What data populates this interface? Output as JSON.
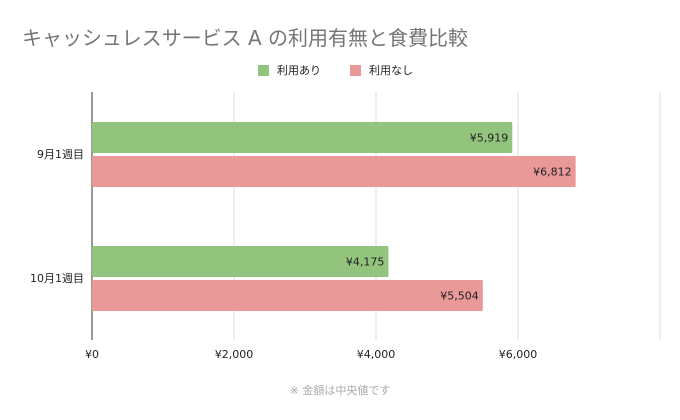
{
  "chart_data": {
    "type": "bar",
    "orientation": "horizontal",
    "title": "キャッシュレスサービス A の利用有無と食費比較",
    "categories": [
      "9月1週目",
      "10月1週目"
    ],
    "series": [
      {
        "name": "利用あり",
        "color": "#93c47d",
        "values": [
          5919,
          4175
        ],
        "labels": [
          "¥5,919",
          "¥4,175"
        ]
      },
      {
        "name": "利用なし",
        "color": "#ea9999",
        "values": [
          6812,
          5504
        ],
        "labels": [
          "¥6,812",
          "¥5,504"
        ]
      }
    ],
    "xlim": [
      0,
      8000
    ],
    "xticks": [
      0,
      2000,
      4000,
      6000,
      8000
    ],
    "xtick_labels": [
      "¥0",
      "¥2,000",
      "¥4,000",
      "¥6,000",
      ""
    ],
    "legend": "top",
    "grid": true,
    "footnote": "※ 金額は中央値です"
  }
}
